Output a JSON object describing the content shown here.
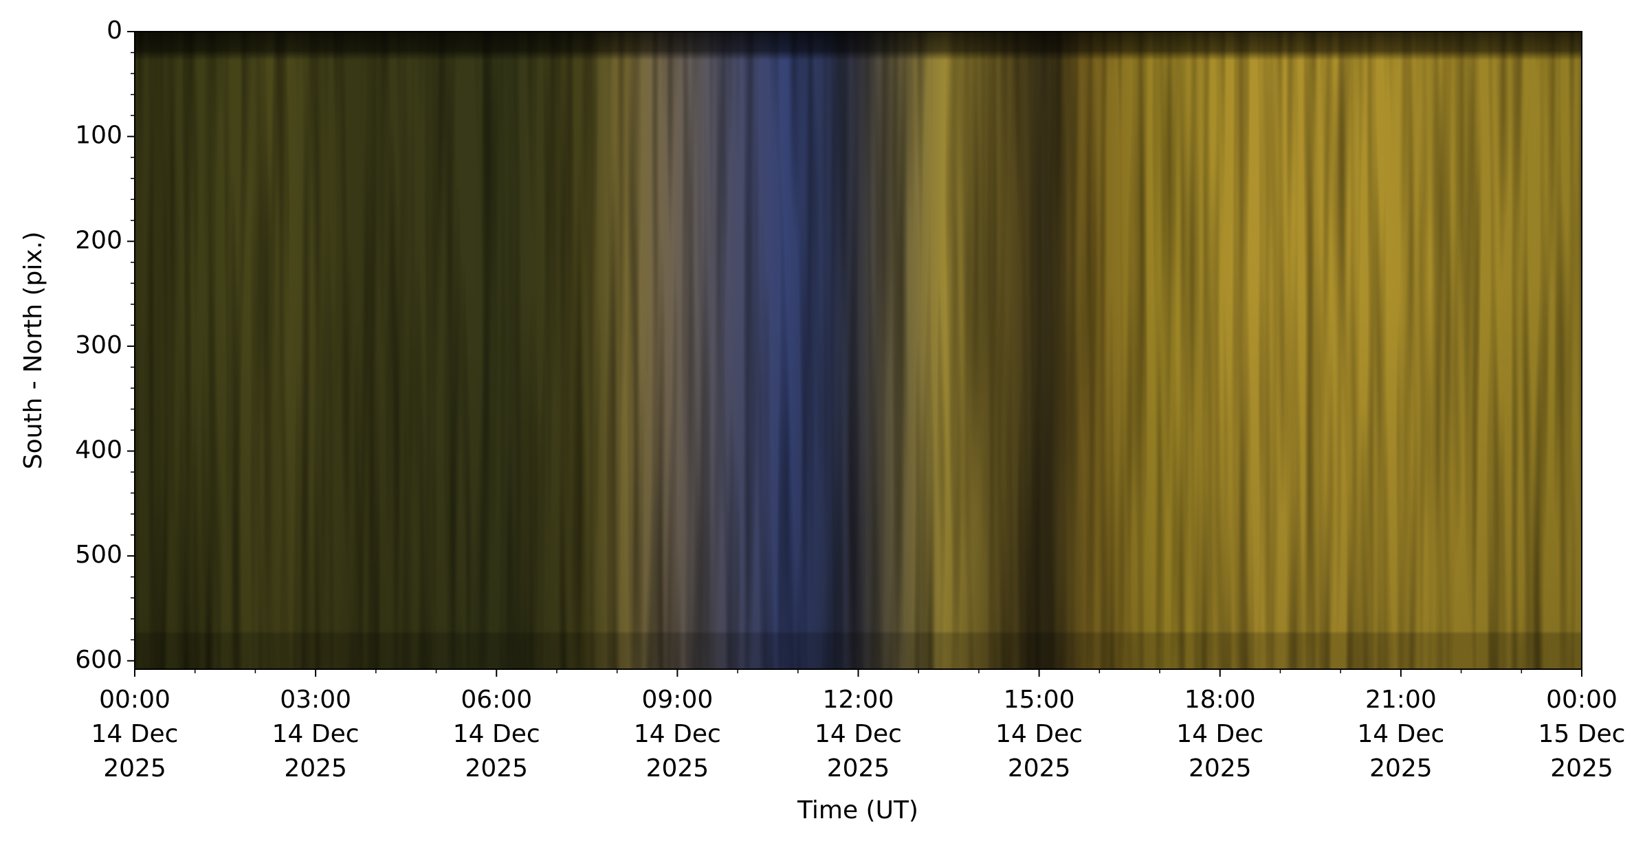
{
  "chart_data": {
    "type": "keogram",
    "x_label": "Time (UT)",
    "y_label": "South - North (pix.)",
    "xlim": [
      "2025-12-14T00:00",
      "2025-12-15T00:00"
    ],
    "xticks": [
      {
        "value": "2025-12-14T00:00",
        "label": [
          "00:00",
          "14 Dec",
          "2025"
        ]
      },
      {
        "value": "2025-12-14T03:00",
        "label": [
          "03:00",
          "14 Dec",
          "2025"
        ]
      },
      {
        "value": "2025-12-14T06:00",
        "label": [
          "06:00",
          "14 Dec",
          "2025"
        ]
      },
      {
        "value": "2025-12-14T09:00",
        "label": [
          "09:00",
          "14 Dec",
          "2025"
        ]
      },
      {
        "value": "2025-12-14T12:00",
        "label": [
          "12:00",
          "14 Dec",
          "2025"
        ]
      },
      {
        "value": "2025-12-14T15:00",
        "label": [
          "15:00",
          "14 Dec",
          "2025"
        ]
      },
      {
        "value": "2025-12-14T18:00",
        "label": [
          "18:00",
          "14 Dec",
          "2025"
        ]
      },
      {
        "value": "2025-12-14T21:00",
        "label": [
          "21:00",
          "14 Dec",
          "2025"
        ]
      },
      {
        "value": "2025-12-15T00:00",
        "label": [
          "00:00",
          "15 Dec",
          "2025"
        ]
      }
    ],
    "xminorticks": [
      "2025-12-14T01:00",
      "2025-12-14T02:00",
      "2025-12-14T04:00",
      "2025-12-14T05:00",
      "2025-12-14T07:00",
      "2025-12-14T08:00",
      "2025-12-14T10:00",
      "2025-12-14T11:00",
      "2025-12-14T13:00",
      "2025-12-14T14:00",
      "2025-12-14T16:00",
      "2025-12-14T17:00",
      "2025-12-14T19:00",
      "2025-12-14T20:00",
      "2025-12-14T22:00",
      "2025-12-14T23:00"
    ],
    "ylim": [
      0,
      608
    ],
    "y_inverted": true,
    "yticks": [
      0,
      100,
      200,
      300,
      400,
      500,
      600
    ],
    "yminorticks": [
      20,
      40,
      60,
      80,
      120,
      140,
      160,
      180,
      220,
      240,
      260,
      280,
      320,
      340,
      360,
      380,
      420,
      440,
      460,
      480,
      520,
      540,
      560,
      580
    ]
  }
}
